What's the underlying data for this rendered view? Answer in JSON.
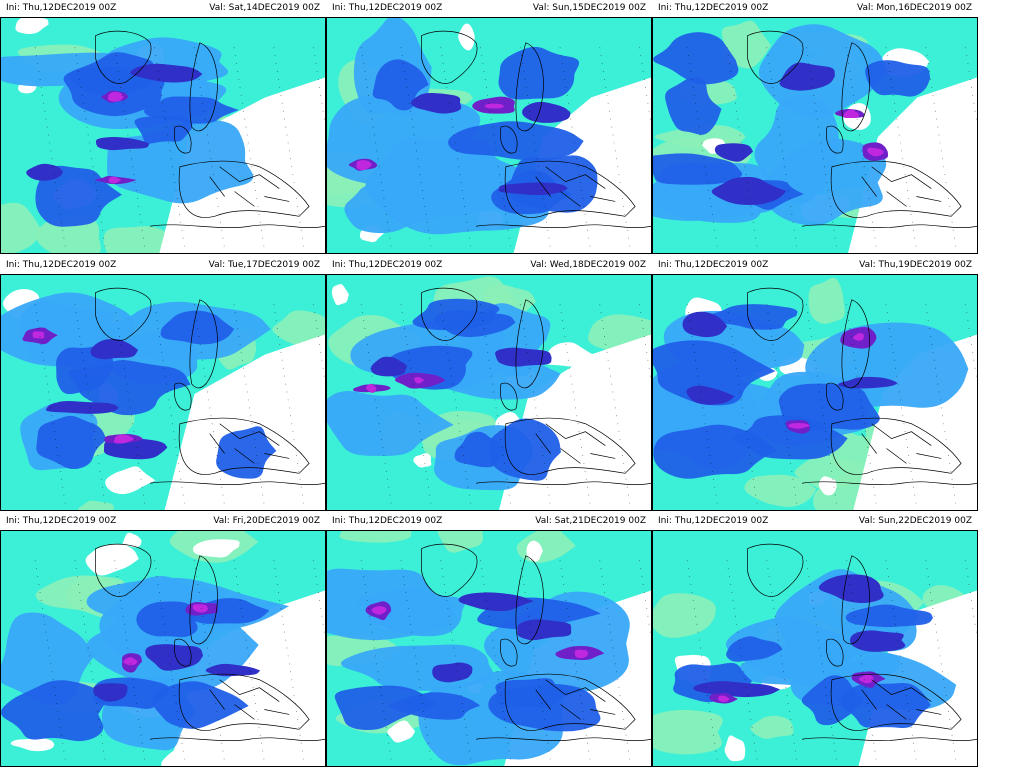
{
  "panels": [
    {
      "init": "Ini: Thu,12DEC2019 00Z",
      "valid": "Val: Sat,14DEC2019 00Z",
      "pattern": 0
    },
    {
      "init": "Ini: Thu,12DEC2019 00Z",
      "valid": "Val: Sun,15DEC2019 00Z",
      "pattern": 1
    },
    {
      "init": "Ini: Thu,12DEC2019 00Z",
      "valid": "Val: Mon,16DEC2019 00Z",
      "pattern": 2
    },
    {
      "init": "Ini: Thu,12DEC2019 00Z",
      "valid": "Val: Tue,17DEC2019 00Z",
      "pattern": 3
    },
    {
      "init": "Ini: Thu,12DEC2019 00Z",
      "valid": "Val: Wed,18DEC2019 00Z",
      "pattern": 4
    },
    {
      "init": "Ini: Thu,12DEC2019 00Z",
      "valid": "Val: Thu,19DEC2019 00Z",
      "pattern": 5
    },
    {
      "init": "Ini: Thu,12DEC2019 00Z",
      "valid": "Val: Fri,20DEC2019 00Z",
      "pattern": 6
    },
    {
      "init": "Ini: Thu,12DEC2019 00Z",
      "valid": "Val: Sat,21DEC2019 00Z",
      "pattern": 7
    },
    {
      "init": "Ini: Thu,12DEC2019 00Z",
      "valid": "Val: Sun,22DEC2019 00Z",
      "pattern": 8
    }
  ],
  "colors": {
    "cyan": "#3cf0d8",
    "light_green": "#8cf0b8",
    "light_blue": "#38a8f8",
    "blue": "#2060e8",
    "dark_blue": "#3030c8",
    "violet": "#7020c8",
    "magenta": "#c028e0",
    "land_outline": "#000000",
    "background": "#ffffff"
  }
}
